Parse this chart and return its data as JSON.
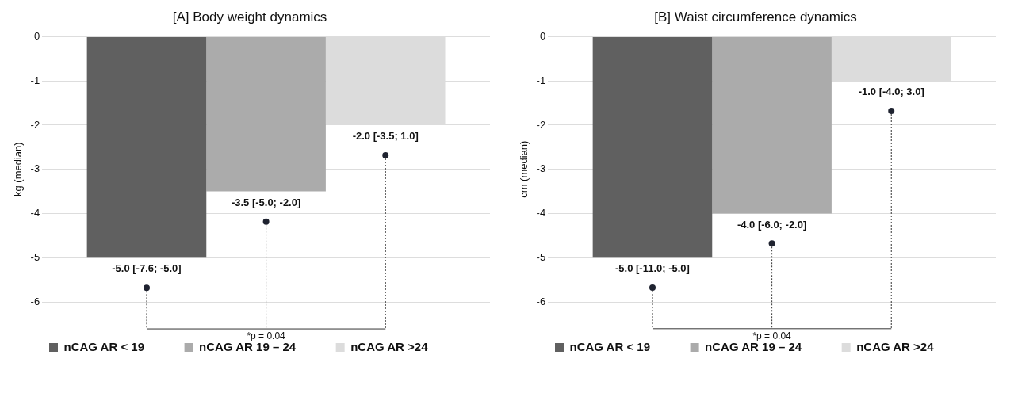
{
  "chart_data": [
    {
      "type": "bar",
      "title": "[A] Body weight dynamics",
      "ylabel": "kg (median)",
      "categories": [
        null
      ],
      "ylim": [
        -6,
        0
      ],
      "yticks": [
        0,
        -1,
        -2,
        -3,
        -4,
        -5,
        -6
      ],
      "grid": "y",
      "legend": "bottom",
      "annotations": [
        "*p = 0.04"
      ],
      "series": [
        {
          "name": "nCAG AR < 19",
          "color": "#606060",
          "values": [
            -5.0
          ],
          "value_labels": [
            "-5.0 [-7.6; -5.0]"
          ]
        },
        {
          "name": "nCAG AR 19 – 24",
          "color": "#ababab",
          "values": [
            -3.5
          ],
          "value_labels": [
            "-3.5 [-5.0; -2.0]"
          ]
        },
        {
          "name": "nCAG AR >24",
          "color": "#dcdcdc",
          "values": [
            -2.0
          ],
          "value_labels": [
            "-2.0 [-3.5; 1.0]"
          ]
        }
      ]
    },
    {
      "type": "bar",
      "title": "[B] Waist circumference dynamics",
      "ylabel": "cm (median)",
      "categories": [
        null
      ],
      "ylim": [
        -6,
        0
      ],
      "yticks": [
        0,
        -1,
        -2,
        -3,
        -4,
        -5,
        -6
      ],
      "grid": "y",
      "legend": "bottom",
      "annotations": [
        "*p = 0.04"
      ],
      "series": [
        {
          "name": "nCAG AR < 19",
          "color": "#606060",
          "values": [
            -5.0
          ],
          "value_labels": [
            "-5.0 [-11.0; -5.0]"
          ]
        },
        {
          "name": "nCAG AR 19 – 24",
          "color": "#ababab",
          "values": [
            -4.0
          ],
          "value_labels": [
            "-4.0 [-6.0; -2.0]"
          ]
        },
        {
          "name": "nCAG AR >24",
          "color": "#dcdcdc",
          "values": [
            -1.0
          ],
          "value_labels": [
            "-1.0 [-4.0; 3.0]"
          ]
        }
      ]
    }
  ]
}
